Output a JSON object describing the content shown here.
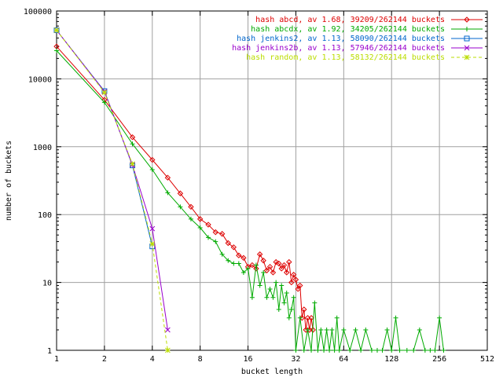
{
  "chart_data": {
    "type": "line",
    "xlabel": "bucket length",
    "ylabel": "number of buckets",
    "x_scale": "log2",
    "y_scale": "log10",
    "xlim": [
      1,
      512
    ],
    "ylim": [
      1,
      100000
    ],
    "grid": true,
    "legend_position": "top-right",
    "x_ticks": [
      1,
      2,
      4,
      8,
      16,
      32,
      64,
      128,
      256,
      512
    ],
    "x_tick_labels": [
      "1",
      "2",
      "4",
      "8",
      "16",
      "32",
      "64",
      "128",
      "256",
      "512"
    ],
    "y_ticks": [
      1,
      10,
      100,
      1000,
      10000,
      100000
    ],
    "y_tick_labels": [
      "1",
      "10",
      "100",
      "1000",
      "10000",
      "100000"
    ],
    "series": [
      {
        "name": "hash abcd, av 1.68, 39209/262144 buckets",
        "color": "#dd0000",
        "marker": "diamond",
        "x": [
          1,
          2,
          3,
          4,
          5,
          6,
          7,
          8,
          9,
          10,
          11,
          12,
          13,
          14,
          15,
          16,
          17,
          18,
          19,
          20,
          21,
          22,
          23,
          24,
          25,
          26,
          27,
          28,
          29,
          30,
          31,
          32,
          33,
          34,
          35,
          36,
          37,
          38,
          39,
          40,
          41
        ],
        "y": [
          30000,
          4900,
          1380,
          640,
          350,
          205,
          130,
          86,
          71,
          55,
          52,
          38,
          33,
          25,
          23,
          17,
          18,
          16,
          26,
          21,
          15,
          17,
          14,
          20,
          19,
          16,
          18,
          14,
          20,
          10,
          13,
          11,
          8,
          9,
          3,
          4,
          2,
          3,
          2,
          3,
          2
        ]
      },
      {
        "name": "hash abcdx, av 1.92, 34205/262144 buckets",
        "color": "#00aa00",
        "marker": "plus",
        "x": [
          1,
          2,
          3,
          4,
          5,
          6,
          7,
          8,
          9,
          10,
          11,
          12,
          13,
          14,
          15,
          16,
          17,
          18,
          19,
          20,
          21,
          22,
          23,
          24,
          25,
          26,
          27,
          28,
          29,
          30,
          31,
          32,
          34,
          36,
          38,
          40,
          42,
          44,
          46,
          48,
          50,
          52,
          54,
          56,
          58,
          60,
          64,
          70,
          76,
          82,
          88,
          96,
          104,
          112,
          120,
          128,
          136,
          144,
          160,
          176,
          192,
          208,
          224,
          240,
          256,
          272
        ],
        "y": [
          26000,
          4500,
          1100,
          460,
          210,
          130,
          86,
          64,
          46,
          40,
          26,
          21,
          19,
          19,
          14,
          16,
          6,
          18,
          9,
          14,
          6,
          8,
          6,
          10,
          4,
          9,
          5,
          7,
          3,
          4,
          6,
          1,
          3,
          1,
          2,
          1,
          5,
          1,
          2,
          1,
          2,
          1,
          2,
          1,
          3,
          1,
          2,
          1,
          2,
          1,
          2,
          1,
          1,
          1,
          2,
          1,
          3,
          1,
          1,
          1,
          2,
          1,
          1,
          1,
          3,
          1
        ]
      },
      {
        "name": "hash jenkins2, av 1.13, 58090/262144 buckets",
        "color": "#0066cc",
        "marker": "square",
        "x": [
          1,
          2,
          3,
          4
        ],
        "y": [
          52000,
          6600,
          530,
          34
        ]
      },
      {
        "name": "hash jenkins2b, av 1.13, 57946/262144 buckets",
        "color": "#9900cc",
        "marker": "cross",
        "x": [
          1,
          2,
          3,
          4,
          5
        ],
        "y": [
          52000,
          6500,
          540,
          62,
          2
        ]
      },
      {
        "name": "hash random, av 1.13, 58132/262144 buckets",
        "color": "#bbdd00",
        "marker": "star",
        "x": [
          1,
          2,
          3,
          4,
          5
        ],
        "y": [
          52000,
          6300,
          560,
          37,
          1
        ]
      }
    ]
  }
}
